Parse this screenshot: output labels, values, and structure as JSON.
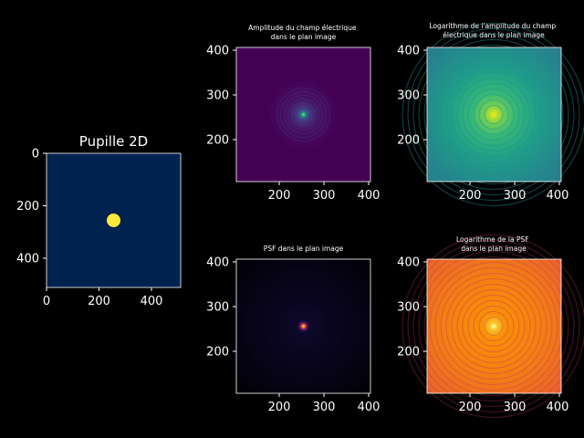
{
  "figure": {
    "background": "#000000",
    "text_color": "#ffffff"
  },
  "chart_data": [
    {
      "id": "pupil",
      "type": "heatmap",
      "title": "Pupille 2D",
      "description": "circular aperture (disk) centered at (256,256) on a 512x512 grid",
      "xlim": [
        0,
        511
      ],
      "ylim": [
        511,
        0
      ],
      "xticks": [
        "0",
        "200",
        "400"
      ],
      "yticks": [
        "0",
        "200",
        "400"
      ],
      "center": [
        256,
        256
      ],
      "radius": 16,
      "colormap": "cividis",
      "bg_color": "#00224e",
      "fg_color": "#fee838"
    },
    {
      "id": "amp",
      "type": "heatmap",
      "title": "Amplitude du champ électrique\ndans le plan image",
      "xlim": [
        106,
        406
      ],
      "ylim": [
        106,
        406
      ],
      "xticks": [
        "200",
        "300",
        "400"
      ],
      "yticks": [
        "200",
        "300",
        "400"
      ],
      "center": [
        256,
        256
      ],
      "colormap": "viridis"
    },
    {
      "id": "logamp",
      "type": "heatmap",
      "title": "Logarithme de l'amplitude du champ\nélectrique dans le plan image",
      "xlim": [
        106,
        406
      ],
      "ylim": [
        106,
        406
      ],
      "xticks": [
        "200",
        "300",
        "400"
      ],
      "yticks": [
        "200",
        "300",
        "400"
      ],
      "center": [
        256,
        256
      ],
      "colormap": "viridis"
    },
    {
      "id": "psf",
      "type": "heatmap",
      "title": "PSF dans le plan image",
      "xlim": [
        106,
        406
      ],
      "ylim": [
        106,
        406
      ],
      "xticks": [
        "200",
        "300",
        "400"
      ],
      "yticks": [
        "200",
        "300",
        "400"
      ],
      "center": [
        256,
        256
      ],
      "colormap": "inferno"
    },
    {
      "id": "logpsf",
      "type": "heatmap",
      "title": "Logarithme de la PSF\ndans le plan image",
      "xlim": [
        106,
        406
      ],
      "ylim": [
        106,
        406
      ],
      "xticks": [
        "200",
        "300",
        "400"
      ],
      "yticks": [
        "200",
        "300",
        "400"
      ],
      "center": [
        256,
        256
      ],
      "colormap": "inferno"
    }
  ]
}
